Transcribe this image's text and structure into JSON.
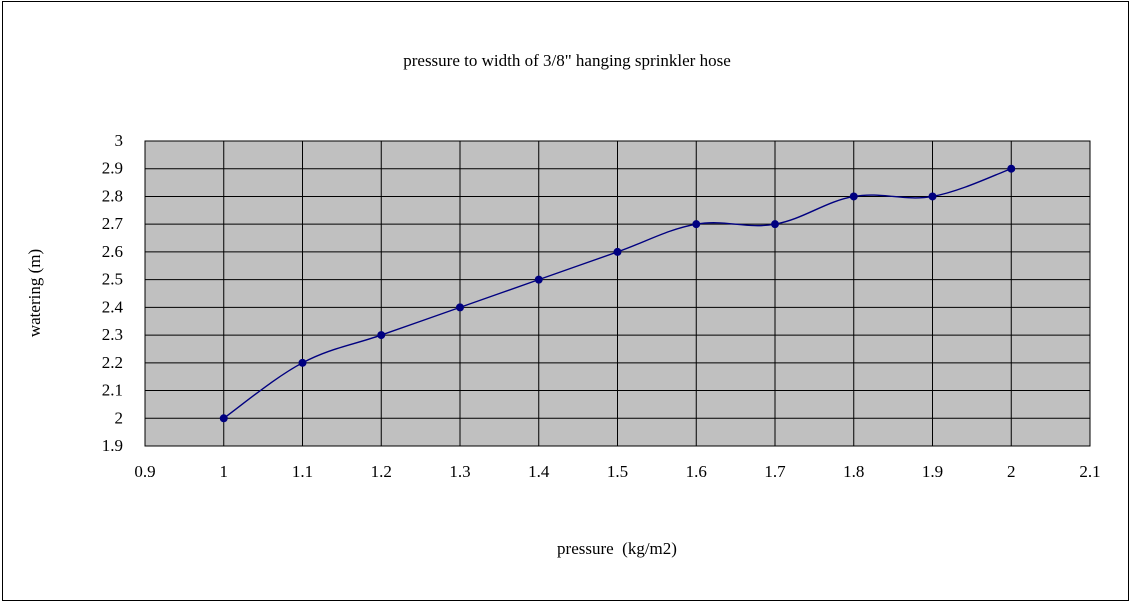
{
  "chart_data": {
    "type": "line",
    "title": "pressure to width of 3/8\" hanging sprinkler hose",
    "xlabel": "pressure  (kg/m2)",
    "ylabel": "watering (m)",
    "xlim": [
      0.9,
      2.1
    ],
    "ylim": [
      1.9,
      3.0
    ],
    "x_ticks": [
      "0.9",
      "1",
      "1.1",
      "1.2",
      "1.3",
      "1.4",
      "1.5",
      "1.6",
      "1.7",
      "1.8",
      "1.9",
      "2",
      "2.1"
    ],
    "y_ticks": [
      "3",
      "2.9",
      "2.8",
      "2.7",
      "2.6",
      "2.5",
      "2.4",
      "2.3",
      "2.2",
      "2.1",
      "2",
      "1.9"
    ],
    "grid": true,
    "legend": "none",
    "colors": {
      "plot_bg": "#c0c0c0",
      "line": "#000080",
      "marker": "#000080",
      "grid": "#000000"
    },
    "series": [
      {
        "x": [
          1.0,
          1.1,
          1.2,
          1.3,
          1.4,
          1.5,
          1.6,
          1.7,
          1.8,
          1.9,
          2.0
        ],
        "y": [
          2.0,
          2.2,
          2.3,
          2.4,
          2.5,
          2.6,
          2.7,
          2.7,
          2.8,
          2.8,
          2.9
        ]
      }
    ]
  }
}
